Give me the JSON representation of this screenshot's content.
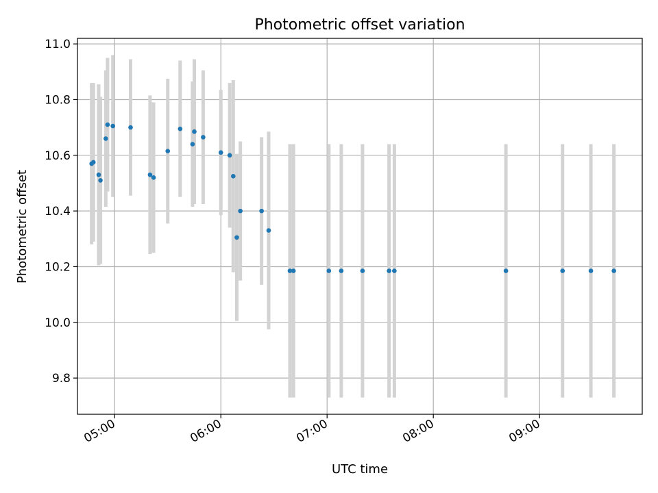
{
  "chart_data": {
    "type": "scatter",
    "title": "Photometric offset variation",
    "xlabel": "UTC time",
    "ylabel": "Photometric offset",
    "xlim": [
      "04:39",
      "09:58"
    ],
    "ylim": [
      9.67,
      11.02
    ],
    "x_ticks": [
      "05:00",
      "06:00",
      "07:00",
      "08:00",
      "09:00"
    ],
    "y_ticks": [
      "9.8",
      "10.0",
      "10.2",
      "10.4",
      "10.6",
      "10.8",
      "11.0"
    ],
    "grid": true,
    "colors": {
      "point": "#1f77b4",
      "errorbar": "#d3d3d3",
      "grid": "#b0b0b0"
    },
    "points": [
      {
        "x": "04:47",
        "y": 10.57,
        "yerr": 0.29
      },
      {
        "x": "04:48",
        "y": 10.575,
        "yerr": 0.285
      },
      {
        "x": "04:51",
        "y": 10.53,
        "yerr": 0.325
      },
      {
        "x": "04:52",
        "y": 10.51,
        "yerr": 0.3
      },
      {
        "x": "04:55",
        "y": 10.66,
        "yerr": 0.245
      },
      {
        "x": "04:56",
        "y": 10.71,
        "yerr": 0.24
      },
      {
        "x": "04:59",
        "y": 10.705,
        "yerr": 0.255
      },
      {
        "x": "05:09",
        "y": 10.7,
        "yerr": 0.245
      },
      {
        "x": "05:20",
        "y": 10.53,
        "yerr": 0.285
      },
      {
        "x": "05:22",
        "y": 10.52,
        "yerr": 0.27
      },
      {
        "x": "05:30",
        "y": 10.615,
        "yerr": 0.26
      },
      {
        "x": "05:37",
        "y": 10.695,
        "yerr": 0.245
      },
      {
        "x": "05:44",
        "y": 10.64,
        "yerr": 0.225
      },
      {
        "x": "05:45",
        "y": 10.685,
        "yerr": 0.26
      },
      {
        "x": "05:50",
        "y": 10.665,
        "yerr": 0.24
      },
      {
        "x": "06:00",
        "y": 10.61,
        "yerr": 0.225
      },
      {
        "x": "06:05",
        "y": 10.6,
        "yerr": 0.26
      },
      {
        "x": "06:07",
        "y": 10.525,
        "yerr": 0.345
      },
      {
        "x": "06:09",
        "y": 10.305,
        "yerr": 0.3
      },
      {
        "x": "06:11",
        "y": 10.4,
        "yerr": 0.25
      },
      {
        "x": "06:23",
        "y": 10.4,
        "yerr": 0.265
      },
      {
        "x": "06:27",
        "y": 10.33,
        "yerr": 0.355
      },
      {
        "x": "06:39",
        "y": 10.185,
        "yerr": 0.455
      },
      {
        "x": "06:41",
        "y": 10.185,
        "yerr": 0.455
      },
      {
        "x": "07:01",
        "y": 10.185,
        "yerr": 0.455
      },
      {
        "x": "07:08",
        "y": 10.185,
        "yerr": 0.455
      },
      {
        "x": "07:20",
        "y": 10.185,
        "yerr": 0.455
      },
      {
        "x": "07:35",
        "y": 10.185,
        "yerr": 0.455
      },
      {
        "x": "07:38",
        "y": 10.185,
        "yerr": 0.455
      },
      {
        "x": "08:41",
        "y": 10.185,
        "yerr": 0.455
      },
      {
        "x": "09:13",
        "y": 10.185,
        "yerr": 0.455
      },
      {
        "x": "09:29",
        "y": 10.185,
        "yerr": 0.455
      },
      {
        "x": "09:42",
        "y": 10.185,
        "yerr": 0.455
      }
    ]
  }
}
